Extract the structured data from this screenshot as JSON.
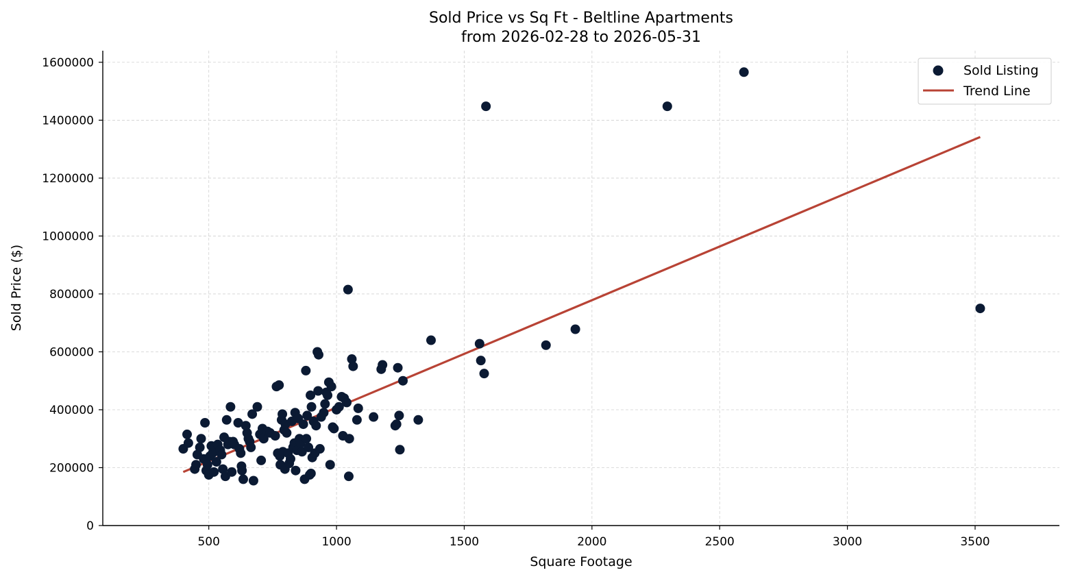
{
  "chart_data": {
    "type": "scatter",
    "title_line1": "Sold Price vs Sq Ft - Beltline Apartments",
    "title_line2": "from 2026-02-28 to 2026-05-31",
    "xlabel": "Square Footage",
    "ylabel": "Sold Price ($)",
    "xlim": [
      85,
      3830
    ],
    "ylim": [
      0,
      1640000
    ],
    "xticks": [
      500,
      1000,
      1500,
      2000,
      2500,
      3000,
      3500
    ],
    "yticks": [
      0,
      200000,
      400000,
      600000,
      800000,
      1000000,
      1200000,
      1400000,
      1600000
    ],
    "grid": true,
    "legend_position": "top-right",
    "colors": {
      "points": "#0b1a33",
      "trend": "#b84335"
    },
    "series": [
      {
        "name": "Sold Listing",
        "kind": "scatter",
        "points": [
          [
            400,
            265000
          ],
          [
            415,
            315000
          ],
          [
            420,
            285000
          ],
          [
            445,
            195000
          ],
          [
            450,
            210000
          ],
          [
            455,
            245000
          ],
          [
            465,
            270000
          ],
          [
            470,
            300000
          ],
          [
            480,
            230000
          ],
          [
            485,
            355000
          ],
          [
            490,
            190000
          ],
          [
            495,
            210000
          ],
          [
            500,
            175000
          ],
          [
            505,
            240000
          ],
          [
            510,
            275000
          ],
          [
            515,
            250000
          ],
          [
            520,
            185000
          ],
          [
            525,
            270000
          ],
          [
            530,
            220000
          ],
          [
            535,
            280000
          ],
          [
            545,
            260000
          ],
          [
            550,
            245000
          ],
          [
            555,
            195000
          ],
          [
            560,
            305000
          ],
          [
            565,
            170000
          ],
          [
            570,
            365000
          ],
          [
            575,
            280000
          ],
          [
            580,
            290000
          ],
          [
            585,
            410000
          ],
          [
            590,
            185000
          ],
          [
            595,
            290000
          ],
          [
            600,
            280000
          ],
          [
            615,
            355000
          ],
          [
            620,
            265000
          ],
          [
            625,
            250000
          ],
          [
            628,
            205000
          ],
          [
            630,
            190000
          ],
          [
            635,
            160000
          ],
          [
            645,
            345000
          ],
          [
            650,
            320000
          ],
          [
            655,
            300000
          ],
          [
            660,
            290000
          ],
          [
            665,
            270000
          ],
          [
            670,
            385000
          ],
          [
            675,
            155000
          ],
          [
            690,
            410000
          ],
          [
            700,
            315000
          ],
          [
            705,
            225000
          ],
          [
            710,
            335000
          ],
          [
            715,
            300000
          ],
          [
            730,
            325000
          ],
          [
            740,
            320000
          ],
          [
            760,
            310000
          ],
          [
            765,
            480000
          ],
          [
            770,
            250000
          ],
          [
            775,
            485000
          ],
          [
            778,
            240000
          ],
          [
            780,
            210000
          ],
          [
            785,
            365000
          ],
          [
            788,
            385000
          ],
          [
            790,
            255000
          ],
          [
            795,
            330000
          ],
          [
            798,
            195000
          ],
          [
            800,
            350000
          ],
          [
            805,
            320000
          ],
          [
            810,
            250000
          ],
          [
            815,
            215000
          ],
          [
            820,
            230000
          ],
          [
            825,
            360000
          ],
          [
            830,
            270000
          ],
          [
            835,
            285000
          ],
          [
            838,
            390000
          ],
          [
            840,
            190000
          ],
          [
            845,
            260000
          ],
          [
            850,
            370000
          ],
          [
            855,
            300000
          ],
          [
            860,
            285000
          ],
          [
            865,
            255000
          ],
          [
            870,
            350000
          ],
          [
            875,
            160000
          ],
          [
            880,
            535000
          ],
          [
            882,
            300000
          ],
          [
            885,
            380000
          ],
          [
            890,
            270000
          ],
          [
            895,
            175000
          ],
          [
            898,
            450000
          ],
          [
            900,
            180000
          ],
          [
            902,
            410000
          ],
          [
            905,
            235000
          ],
          [
            910,
            360000
          ],
          [
            915,
            250000
          ],
          [
            920,
            345000
          ],
          [
            925,
            600000
          ],
          [
            928,
            465000
          ],
          [
            930,
            590000
          ],
          [
            935,
            265000
          ],
          [
            940,
            375000
          ],
          [
            950,
            390000
          ],
          [
            955,
            420000
          ],
          [
            960,
            460000
          ],
          [
            965,
            450000
          ],
          [
            970,
            495000
          ],
          [
            975,
            210000
          ],
          [
            980,
            480000
          ],
          [
            985,
            340000
          ],
          [
            990,
            335000
          ],
          [
            1000,
            400000
          ],
          [
            1010,
            410000
          ],
          [
            1020,
            445000
          ],
          [
            1025,
            310000
          ],
          [
            1030,
            440000
          ],
          [
            1040,
            425000
          ],
          [
            1045,
            815000
          ],
          [
            1048,
            170000
          ],
          [
            1050,
            300000
          ],
          [
            1060,
            575000
          ],
          [
            1065,
            550000
          ],
          [
            1080,
            365000
          ],
          [
            1085,
            405000
          ],
          [
            1145,
            375000
          ],
          [
            1175,
            540000
          ],
          [
            1180,
            555000
          ],
          [
            1230,
            345000
          ],
          [
            1235,
            350000
          ],
          [
            1240,
            545000
          ],
          [
            1245,
            380000
          ],
          [
            1248,
            262000
          ],
          [
            1260,
            500000
          ],
          [
            1320,
            365000
          ],
          [
            1370,
            640000
          ],
          [
            1560,
            628000
          ],
          [
            1565,
            570000
          ],
          [
            1578,
            525000
          ],
          [
            1585,
            1448000
          ],
          [
            1820,
            623000
          ],
          [
            1935,
            678000
          ],
          [
            2295,
            1448000
          ],
          [
            2595,
            1566000
          ],
          [
            3520,
            750000
          ]
        ]
      },
      {
        "name": "Trend Line",
        "kind": "line",
        "points": [
          [
            400,
            185000
          ],
          [
            3520,
            1342000
          ]
        ]
      }
    ]
  }
}
